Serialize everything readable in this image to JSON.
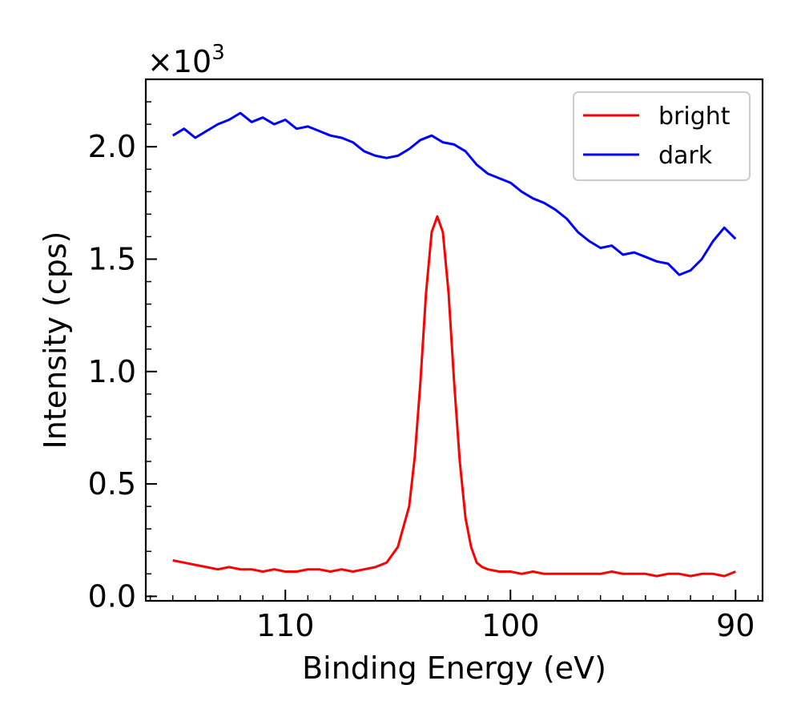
{
  "chart_data": {
    "type": "line",
    "xlabel": "Binding Energy (eV)",
    "ylabel": "Intensity (cps)",
    "y_multiplier": {
      "base": "×10",
      "exponent": "3"
    },
    "xlim": [
      116.2,
      88.8
    ],
    "ylim": [
      -0.02,
      2.3
    ],
    "x_reversed": true,
    "x_ticks": [
      {
        "value": 110,
        "label": "110"
      },
      {
        "value": 100,
        "label": "100"
      },
      {
        "value": 90,
        "label": "90"
      }
    ],
    "y_ticks": [
      {
        "value": 0.0,
        "label": "0.0"
      },
      {
        "value": 0.5,
        "label": "0.5"
      },
      {
        "value": 1.0,
        "label": "1.0"
      },
      {
        "value": 1.5,
        "label": "1.5"
      },
      {
        "value": 2.0,
        "label": "2.0"
      }
    ],
    "grid": false,
    "legend": "top-right",
    "series": [
      {
        "name": "bright",
        "color": "#ff0000",
        "x": [
          115,
          114.5,
          114,
          113.5,
          113,
          112.5,
          112,
          111.5,
          111,
          110.5,
          110,
          109.5,
          109,
          108.5,
          108,
          107.5,
          107,
          106.5,
          106,
          105.5,
          105,
          104.5,
          104.25,
          104,
          103.75,
          103.5,
          103.25,
          103,
          102.75,
          102.5,
          102.25,
          102,
          101.75,
          101.5,
          101.25,
          101,
          100.5,
          100,
          99.5,
          99,
          98.5,
          98,
          97.5,
          97,
          96.5,
          96,
          95.5,
          95,
          94.5,
          94,
          93.5,
          93,
          92.5,
          92,
          91.5,
          91,
          90.5,
          90
        ],
        "values": [
          0.16,
          0.15,
          0.14,
          0.13,
          0.12,
          0.13,
          0.12,
          0.12,
          0.11,
          0.12,
          0.11,
          0.11,
          0.12,
          0.12,
          0.11,
          0.12,
          0.11,
          0.12,
          0.13,
          0.15,
          0.22,
          0.4,
          0.62,
          0.95,
          1.35,
          1.62,
          1.69,
          1.62,
          1.35,
          0.95,
          0.6,
          0.35,
          0.22,
          0.15,
          0.13,
          0.12,
          0.11,
          0.11,
          0.1,
          0.11,
          0.1,
          0.1,
          0.1,
          0.1,
          0.1,
          0.1,
          0.11,
          0.1,
          0.1,
          0.1,
          0.09,
          0.1,
          0.1,
          0.09,
          0.1,
          0.1,
          0.09,
          0.11
        ]
      },
      {
        "name": "dark",
        "color": "#0000ff",
        "x": [
          115,
          114.5,
          114,
          113.5,
          113,
          112.5,
          112,
          111.5,
          111,
          110.5,
          110,
          109.5,
          109,
          108.5,
          108,
          107.5,
          107,
          106.5,
          106,
          105.5,
          105,
          104.5,
          104,
          103.5,
          103,
          102.5,
          102,
          101.5,
          101,
          100.5,
          100,
          99.5,
          99,
          98.5,
          98,
          97.5,
          97,
          96.5,
          96,
          95.5,
          95,
          94.5,
          94,
          93.5,
          93,
          92.5,
          92,
          91.5,
          91,
          90.5,
          90
        ],
        "values": [
          2.05,
          2.08,
          2.04,
          2.07,
          2.1,
          2.12,
          2.15,
          2.11,
          2.13,
          2.1,
          2.12,
          2.08,
          2.09,
          2.07,
          2.05,
          2.04,
          2.02,
          1.98,
          1.96,
          1.95,
          1.96,
          1.99,
          2.03,
          2.05,
          2.02,
          2.01,
          1.98,
          1.92,
          1.88,
          1.86,
          1.84,
          1.8,
          1.77,
          1.75,
          1.72,
          1.68,
          1.62,
          1.58,
          1.55,
          1.56,
          1.52,
          1.53,
          1.51,
          1.49,
          1.48,
          1.43,
          1.45,
          1.5,
          1.58,
          1.64,
          1.59
        ]
      }
    ]
  }
}
